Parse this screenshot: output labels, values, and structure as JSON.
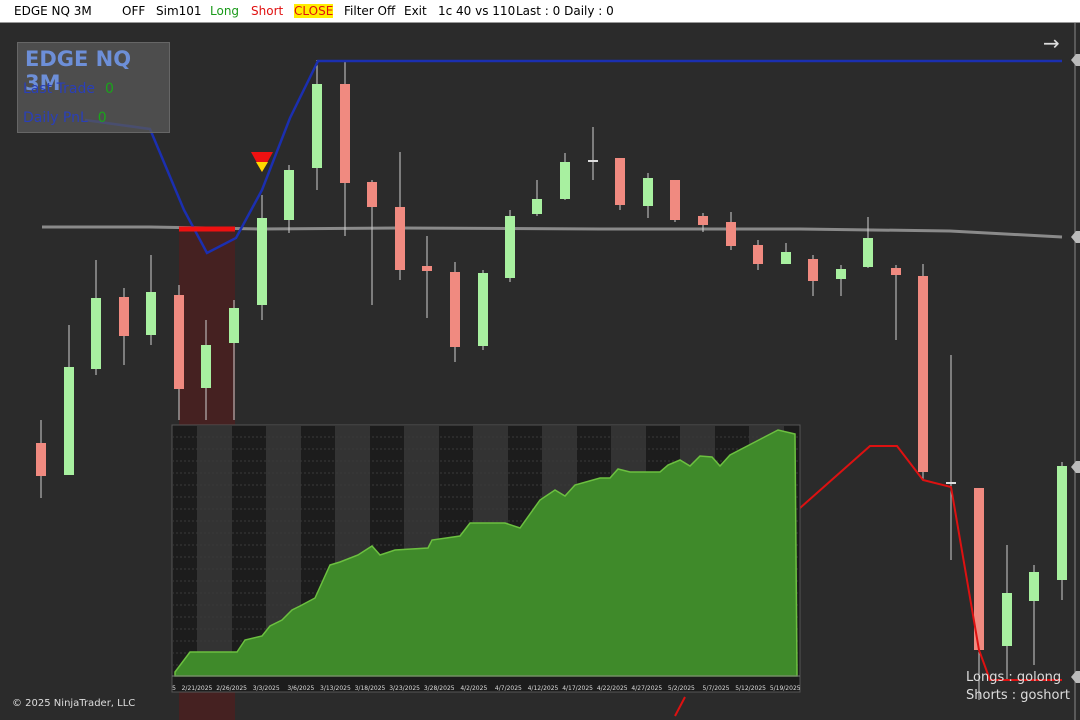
{
  "toolbar": {
    "items": [
      "EDGE NQ 3M",
      "OFF",
      "Sim101",
      "Long",
      "Short",
      "CLOSE",
      "Filter Off",
      "Exit",
      "1c 40 vs 110",
      "Last : 0 Daily : 0"
    ]
  },
  "overlay": {
    "title": "EDGE NQ 3M",
    "rows": [
      {
        "label": "Last Trade",
        "value": "0"
      },
      {
        "label": "Daily PnL",
        "value": "0"
      }
    ]
  },
  "equity_panel": {
    "date_labels": [
      "5",
      "2/21/2025",
      "2/26/2025",
      "3/3/2025",
      "3/6/2025",
      "3/13/2025",
      "3/18/2025",
      "3/23/2025",
      "3/28/2025",
      "4/2/2025",
      "4/7/2025",
      "4/12/2025",
      "4/17/2025",
      "4/22/2025",
      "4/27/2025",
      "5/2/2025",
      "5/7/2025",
      "5/12/2025",
      "5/19/2025"
    ]
  },
  "footer": {
    "copyright": "© 2025 NinjaTrader, LLC",
    "longs": "Longs : golong",
    "shorts": "Shorts : goshort"
  }
}
